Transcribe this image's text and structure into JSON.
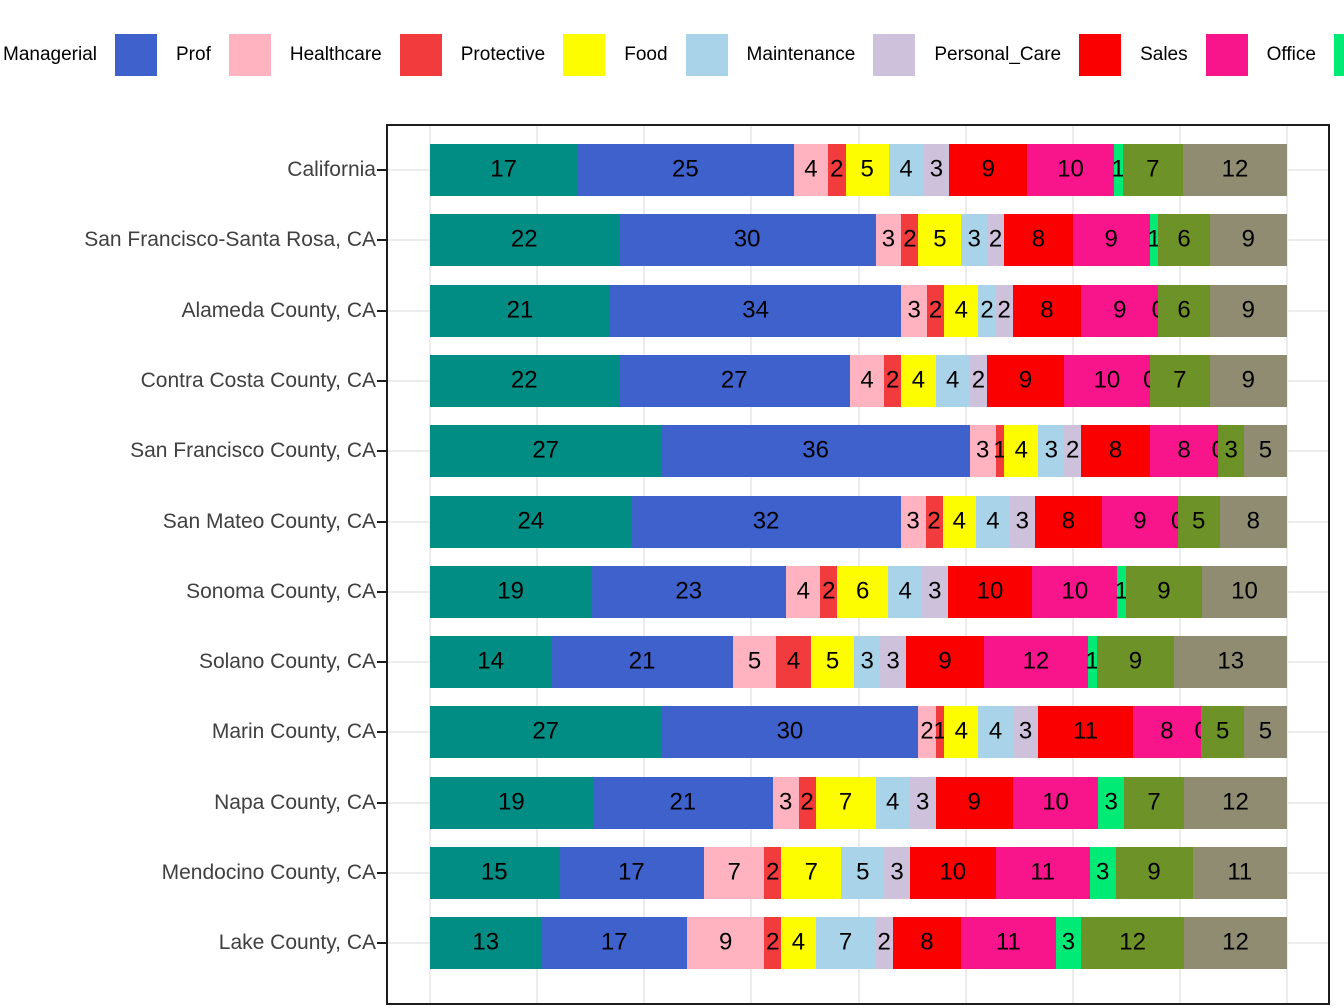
{
  "legend": {
    "position": "top",
    "items": [
      {
        "label": "Managerial",
        "color": "#018C84",
        "swatch_visible": false
      },
      {
        "label": "Prof",
        "color": "#3E61CC",
        "swatch_visible": true
      },
      {
        "label": "Healthcare",
        "color": "#FFB3C1",
        "swatch_visible": true
      },
      {
        "label": "Protective",
        "color": "#F23B3C",
        "swatch_visible": true
      },
      {
        "label": "Food",
        "color": "#FDFD00",
        "swatch_visible": true
      },
      {
        "label": "Maintenance",
        "color": "#A8D3E8",
        "swatch_visible": true
      },
      {
        "label": "Personal_Care",
        "color": "#CDC1DC",
        "swatch_visible": true
      },
      {
        "label": "Sales",
        "color": "#FA0000",
        "swatch_visible": true
      },
      {
        "label": "Office",
        "color": "#F8148B",
        "swatch_visible": true
      },
      {
        "label": "",
        "color": "#00EB76",
        "swatch_visible": true
      }
    ]
  },
  "chart_data": {
    "type": "bar",
    "orientation": "horizontal",
    "stacked": true,
    "unit": "percent",
    "value_labels_shown": true,
    "xlim": [
      0,
      100
    ],
    "grid_step": 12.5,
    "grid": "on",
    "legend_position": "top",
    "categories": [
      "California",
      "San Francisco-Santa Rosa, CA",
      "Alameda County, CA",
      "Contra Costa County, CA",
      "San Francisco County, CA",
      "San Mateo County, CA",
      "Sonoma County, CA",
      "Solano County, CA",
      "Marin County, CA",
      "Napa County, CA",
      "Mendocino County, CA",
      "Lake County, CA"
    ],
    "series": [
      {
        "name": "Managerial",
        "color": "#018C84",
        "values": [
          17,
          22,
          21,
          22,
          27,
          24,
          19,
          14,
          27,
          19,
          15,
          13
        ]
      },
      {
        "name": "Prof",
        "color": "#3E61CC",
        "values": [
          25,
          30,
          34,
          27,
          36,
          32,
          23,
          21,
          30,
          21,
          17,
          17
        ]
      },
      {
        "name": "Healthcare",
        "color": "#FFB3C1",
        "values": [
          4,
          3,
          3,
          4,
          3,
          3,
          4,
          5,
          2,
          3,
          7,
          9
        ]
      },
      {
        "name": "Protective",
        "color": "#F23B3C",
        "values": [
          2,
          2,
          2,
          2,
          1,
          2,
          2,
          4,
          1,
          2,
          2,
          2
        ]
      },
      {
        "name": "Food",
        "color": "#FDFD00",
        "values": [
          5,
          5,
          4,
          4,
          4,
          4,
          6,
          5,
          4,
          7,
          7,
          4
        ]
      },
      {
        "name": "Maintenance",
        "color": "#A8D3E8",
        "values": [
          4,
          3,
          2,
          4,
          3,
          4,
          4,
          3,
          4,
          4,
          5,
          7
        ]
      },
      {
        "name": "Personal_Care",
        "color": "#CDC1DC",
        "values": [
          3,
          2,
          2,
          2,
          2,
          3,
          3,
          3,
          3,
          3,
          3,
          2
        ]
      },
      {
        "name": "Sales",
        "color": "#FA0000",
        "values": [
          9,
          8,
          8,
          9,
          8,
          8,
          10,
          9,
          11,
          9,
          10,
          8
        ]
      },
      {
        "name": "Office",
        "color": "#F8148B",
        "values": [
          10,
          9,
          9,
          10,
          8,
          9,
          10,
          12,
          8,
          10,
          11,
          11
        ]
      },
      {
        "name": "",
        "color": "#00EB76",
        "values": [
          1,
          1,
          0,
          0,
          0,
          0,
          1,
          1,
          0,
          3,
          3,
          3
        ]
      },
      {
        "name": "",
        "color": "#6D9228",
        "values": [
          7,
          6,
          6,
          7,
          3,
          5,
          9,
          9,
          5,
          7,
          9,
          12
        ]
      },
      {
        "name": "",
        "color": "#8F8C72",
        "values": [
          12,
          9,
          9,
          9,
          5,
          8,
          10,
          13,
          5,
          12,
          11,
          12
        ]
      }
    ]
  }
}
